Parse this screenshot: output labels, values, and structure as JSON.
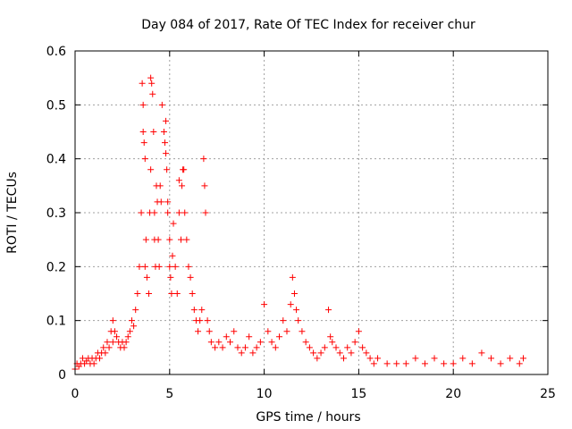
{
  "chart_data": {
    "type": "scatter",
    "title": "Day 084 of 2017, Rate Of TEC Index for receiver chur",
    "xlabel": "GPS time / hours",
    "ylabel": "ROTI / TECUs",
    "xlim": [
      0,
      25
    ],
    "ylim": [
      0,
      0.6
    ],
    "xticks": [
      0,
      5,
      10,
      15,
      20,
      25
    ],
    "yticks": [
      0,
      0.1,
      0.2,
      0.3,
      0.4,
      0.5,
      0.6
    ],
    "xtick_labels": [
      "0",
      "5",
      "10",
      "15",
      "20",
      "25"
    ],
    "ytick_labels": [
      "0",
      "0.1",
      "0.2",
      "0.3",
      "0.4",
      "0.5",
      "0.6"
    ],
    "grid": true,
    "marker": "+",
    "marker_color": "#ff0000",
    "series": [
      {
        "x": [
          0.0,
          0.1,
          0.2,
          0.3,
          0.4,
          0.5,
          0.6,
          0.7,
          0.8,
          0.9,
          1.0,
          1.1,
          1.2,
          1.3,
          1.4,
          1.5,
          1.6,
          1.7,
          1.8,
          1.9,
          2.0,
          2.0,
          2.1,
          2.2,
          2.3,
          2.4,
          2.5,
          2.6,
          2.7,
          2.8,
          2.9,
          3.0,
          3.1,
          3.2,
          3.3,
          3.4,
          3.5,
          3.55,
          3.6,
          3.6,
          3.65,
          3.7,
          3.7,
          3.75,
          3.8,
          3.9,
          3.95,
          4.0,
          4.0,
          4.05,
          4.1,
          4.15,
          4.2,
          4.2,
          4.25,
          4.3,
          4.35,
          4.4,
          4.45,
          4.5,
          4.55,
          4.6,
          4.7,
          4.75,
          4.8,
          4.8,
          4.85,
          4.9,
          4.9,
          5.0,
          5.0,
          5.05,
          5.1,
          5.15,
          5.2,
          5.3,
          5.4,
          5.5,
          5.5,
          5.6,
          5.65,
          5.7,
          5.75,
          5.8,
          5.9,
          6.0,
          6.1,
          6.2,
          6.3,
          6.4,
          6.5,
          6.6,
          6.7,
          6.8,
          6.85,
          6.9,
          7.0,
          7.1,
          7.2,
          7.4,
          7.6,
          7.8,
          8.0,
          8.2,
          8.4,
          8.6,
          8.8,
          9.0,
          9.2,
          9.4,
          9.6,
          9.8,
          10.0,
          10.2,
          10.4,
          10.6,
          10.8,
          11.0,
          11.2,
          11.4,
          11.5,
          11.6,
          11.7,
          11.8,
          12.0,
          12.2,
          12.4,
          12.6,
          12.8,
          13.0,
          13.2,
          13.4,
          13.5,
          13.6,
          13.8,
          14.0,
          14.2,
          14.4,
          14.6,
          14.8,
          15.0,
          15.2,
          15.4,
          15.6,
          15.8,
          16.0,
          16.5,
          17.0,
          17.5,
          18.0,
          18.5,
          19.0,
          19.5,
          20.0,
          20.5,
          21.0,
          21.5,
          22.0,
          22.5,
          23.0,
          23.5,
          23.7
        ],
        "y": [
          0.01,
          0.02,
          0.015,
          0.02,
          0.03,
          0.02,
          0.025,
          0.03,
          0.02,
          0.03,
          0.02,
          0.03,
          0.04,
          0.03,
          0.04,
          0.05,
          0.04,
          0.06,
          0.05,
          0.08,
          0.06,
          0.1,
          0.08,
          0.07,
          0.06,
          0.05,
          0.06,
          0.05,
          0.06,
          0.07,
          0.08,
          0.1,
          0.09,
          0.12,
          0.15,
          0.2,
          0.3,
          0.54,
          0.5,
          0.45,
          0.43,
          0.4,
          0.2,
          0.25,
          0.18,
          0.15,
          0.3,
          0.38,
          0.55,
          0.54,
          0.52,
          0.45,
          0.3,
          0.25,
          0.2,
          0.35,
          0.32,
          0.25,
          0.2,
          0.35,
          0.32,
          0.5,
          0.45,
          0.43,
          0.47,
          0.41,
          0.38,
          0.32,
          0.3,
          0.25,
          0.2,
          0.18,
          0.15,
          0.22,
          0.28,
          0.2,
          0.15,
          0.36,
          0.3,
          0.25,
          0.35,
          0.38,
          0.38,
          0.3,
          0.25,
          0.2,
          0.18,
          0.15,
          0.12,
          0.1,
          0.08,
          0.1,
          0.12,
          0.4,
          0.35,
          0.3,
          0.1,
          0.08,
          0.06,
          0.05,
          0.06,
          0.05,
          0.07,
          0.06,
          0.08,
          0.05,
          0.04,
          0.05,
          0.07,
          0.04,
          0.05,
          0.06,
          0.13,
          0.08,
          0.06,
          0.05,
          0.07,
          0.1,
          0.08,
          0.13,
          0.18,
          0.15,
          0.12,
          0.1,
          0.08,
          0.06,
          0.05,
          0.04,
          0.03,
          0.04,
          0.05,
          0.12,
          0.07,
          0.06,
          0.05,
          0.04,
          0.03,
          0.05,
          0.04,
          0.06,
          0.08,
          0.05,
          0.04,
          0.03,
          0.02,
          0.03,
          0.02,
          0.02,
          0.02,
          0.03,
          0.02,
          0.03,
          0.02,
          0.02,
          0.03,
          0.02,
          0.04,
          0.03,
          0.02,
          0.03,
          0.02,
          0.03
        ]
      }
    ]
  }
}
